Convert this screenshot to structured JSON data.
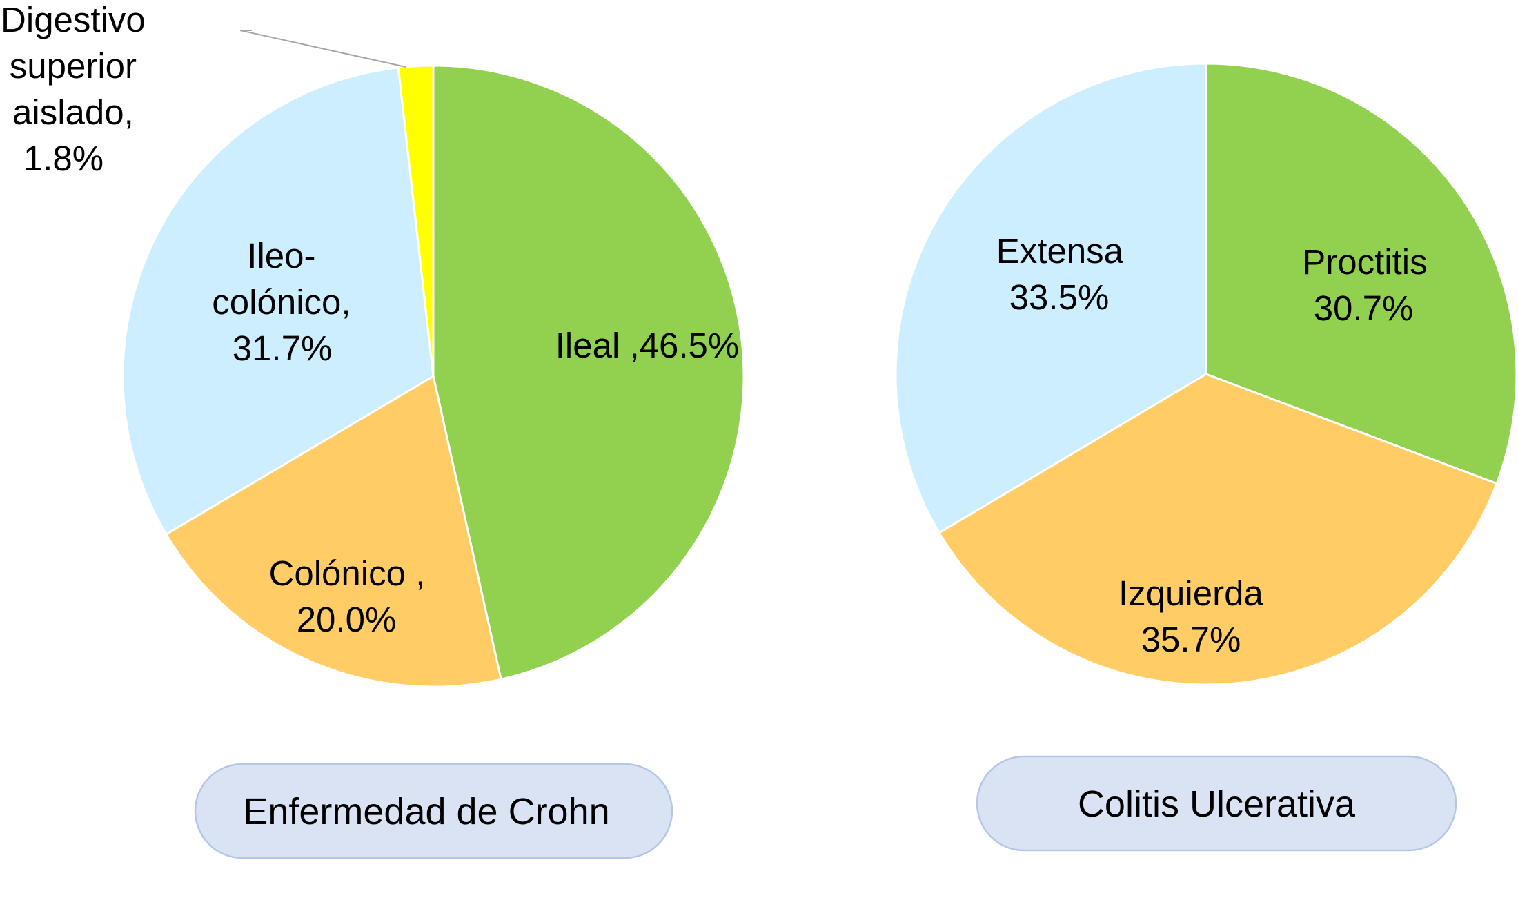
{
  "chart_data": [
    {
      "type": "pie",
      "title": "Enfermedad de Crohn",
      "categories": [
        "Ileal",
        "Colónico",
        "Ileo-colónico",
        "Digestivo superior aislado"
      ],
      "values": [
        46.5,
        20.0,
        31.7,
        1.8
      ],
      "unit": "%",
      "colors": [
        "#92d050",
        "#ffcc66",
        "#cceeff",
        "#ffff00"
      ],
      "labels": [
        [
          "Ileal ,46.5%"
        ],
        [
          "Colónico ,",
          "20.0%"
        ],
        [
          "Ileo-",
          "colónico,",
          "31.7%"
        ],
        [
          "Digestivo",
          "superior",
          "aislado,",
          "1.8%"
        ]
      ]
    },
    {
      "type": "pie",
      "title": "Colitis Ulcerativa",
      "categories": [
        "Proctitis",
        "Izquierda",
        "Extensa"
      ],
      "values": [
        30.7,
        35.7,
        33.5
      ],
      "unit": "%",
      "colors": [
        "#92d050",
        "#ffcc66",
        "#cceeff"
      ],
      "labels": [
        [
          "Proctitis",
          "30.7%"
        ],
        [
          "Izquierda",
          "35.7%"
        ],
        [
          "Extensa",
          "33.5%"
        ]
      ]
    }
  ]
}
